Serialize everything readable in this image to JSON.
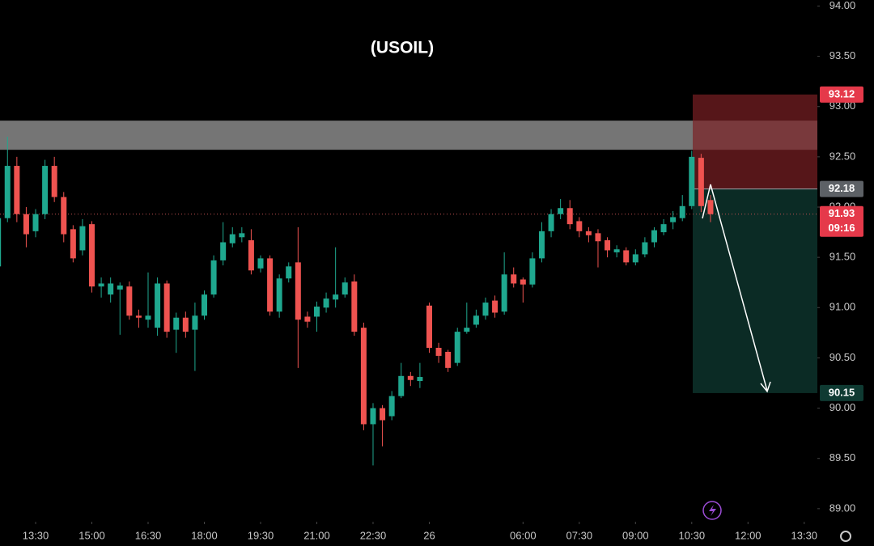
{
  "chart_data": {
    "type": "candlestick",
    "title": "(USOIL)",
    "open": [
      91.41,
      91.89,
      92.41,
      91.93,
      91.76,
      91.93,
      92.41,
      92.1,
      91.78,
      91.57,
      91.83,
      91.21,
      91.13,
      91.18,
      91.21,
      90.92,
      90.88,
      90.8,
      91.24,
      90.78,
      90.9,
      90.78,
      90.92,
      91.13,
      91.47,
      91.64,
      91.7,
      91.67,
      91.39,
      91.49,
      90.96,
      91.29,
      91.45,
      90.91,
      90.91,
      91.0,
      91.08,
      91.13,
      91.26,
      90.8,
      89.84,
      90.0,
      89.92,
      90.12,
      90.32,
      90.27,
      91.02,
      90.6,
      90.56,
      90.45,
      90.76,
      90.83,
      90.92,
      91.07,
      90.96,
      91.33,
      91.28,
      91.23,
      91.49,
      91.76,
      91.93,
      91.99,
      91.86,
      91.76,
      91.74,
      91.67,
      91.55,
      91.57,
      91.45,
      91.53,
      91.65,
      91.75,
      91.85,
      91.89,
      92.01,
      92.49,
      92.07
    ],
    "high": [
      91.95,
      92.7,
      92.5,
      92.0,
      91.98,
      92.47,
      92.5,
      92.15,
      91.82,
      91.88,
      91.86,
      91.3,
      91.3,
      91.25,
      91.26,
      90.98,
      91.35,
      91.3,
      91.27,
      90.95,
      90.96,
      91.05,
      91.17,
      91.52,
      91.85,
      91.8,
      91.8,
      91.78,
      91.52,
      91.52,
      91.33,
      91.45,
      91.8,
      90.96,
      91.06,
      91.15,
      91.6,
      91.3,
      91.33,
      90.85,
      90.05,
      90.03,
      90.17,
      90.45,
      90.36,
      90.45,
      91.05,
      90.65,
      90.58,
      90.8,
      91.05,
      90.98,
      91.1,
      91.12,
      91.55,
      91.4,
      91.3,
      91.55,
      91.85,
      91.98,
      92.08,
      92.07,
      91.9,
      91.8,
      91.78,
      91.7,
      91.62,
      91.6,
      91.58,
      91.7,
      91.8,
      91.88,
      91.96,
      92.12,
      92.56,
      92.53,
      92.12
    ],
    "low": [
      91.3,
      91.85,
      91.85,
      91.6,
      91.7,
      91.88,
      92.05,
      91.65,
      91.45,
      91.52,
      91.15,
      91.1,
      91.05,
      90.73,
      90.88,
      90.8,
      90.8,
      90.72,
      90.7,
      90.55,
      90.7,
      90.37,
      90.88,
      91.1,
      91.42,
      91.6,
      91.65,
      91.33,
      91.35,
      90.92,
      90.9,
      91.25,
      90.4,
      90.8,
      90.76,
      90.95,
      91.0,
      91.1,
      90.72,
      89.78,
      89.43,
      89.62,
      89.88,
      90.1,
      90.22,
      90.2,
      90.55,
      90.45,
      90.36,
      90.42,
      90.74,
      90.8,
      90.88,
      90.9,
      90.93,
      91.2,
      91.05,
      91.2,
      91.45,
      91.7,
      91.88,
      91.78,
      91.7,
      91.65,
      91.4,
      91.5,
      91.5,
      91.42,
      91.42,
      91.5,
      91.6,
      91.72,
      91.78,
      91.86,
      91.98,
      91.95,
      91.85
    ],
    "close": [
      91.89,
      92.41,
      91.93,
      91.73,
      91.93,
      92.41,
      92.1,
      91.73,
      91.49,
      91.81,
      91.21,
      91.24,
      91.24,
      91.22,
      90.92,
      90.9,
      90.92,
      91.24,
      90.76,
      90.9,
      90.76,
      90.92,
      91.13,
      91.47,
      91.65,
      91.73,
      91.74,
      91.37,
      91.49,
      90.96,
      91.29,
      91.41,
      90.88,
      90.86,
      91.01,
      91.09,
      91.13,
      91.25,
      90.76,
      89.84,
      90.0,
      89.88,
      90.12,
      90.32,
      90.28,
      90.31,
      90.6,
      90.52,
      90.4,
      90.76,
      90.8,
      90.92,
      91.05,
      90.95,
      91.33,
      91.24,
      91.23,
      91.49,
      91.76,
      91.93,
      91.99,
      91.83,
      91.76,
      91.72,
      91.66,
      91.57,
      91.58,
      91.45,
      91.53,
      91.65,
      91.77,
      91.83,
      91.9,
      92.01,
      92.5,
      92.01,
      91.93
    ],
    "up_color": "#1fa88f",
    "down_color": "#ef5350",
    "xlim": [
      0.2,
      87.4
    ],
    "xticks": [
      {
        "value": 4,
        "label": "13:30"
      },
      {
        "value": 10,
        "label": "15:00"
      },
      {
        "value": 16,
        "label": "16:30"
      },
      {
        "value": 22,
        "label": "18:00"
      },
      {
        "value": 28,
        "label": "19:30"
      },
      {
        "value": 34,
        "label": "21:00"
      },
      {
        "value": 40,
        "label": "22:30"
      },
      {
        "value": 46,
        "label": "26"
      },
      {
        "value": 56,
        "label": "06:00"
      },
      {
        "value": 62,
        "label": "07:30"
      },
      {
        "value": 68,
        "label": "09:00"
      },
      {
        "value": 74,
        "label": "10:30"
      },
      {
        "value": 80,
        "label": "12:00"
      },
      {
        "value": 86,
        "label": "13:30"
      }
    ],
    "ylim": [
      88.87,
      94.06
    ],
    "yticks": [
      {
        "value": 89,
        "label": "89.00"
      },
      {
        "value": 89.5,
        "label": "89.50"
      },
      {
        "value": 90,
        "label": "90.00"
      },
      {
        "value": 90.5,
        "label": "90.50"
      },
      {
        "value": 91,
        "label": "91.00"
      },
      {
        "value": 91.5,
        "label": "91.50"
      },
      {
        "value": 92,
        "label": "92.00"
      },
      {
        "value": 92.5,
        "label": "92.50"
      },
      {
        "value": 93,
        "label": "93.00"
      },
      {
        "value": 93.5,
        "label": "93.50"
      },
      {
        "value": 94,
        "label": "94.00"
      }
    ],
    "resistance_zone": [
      92.57,
      92.86
    ],
    "stop_loss": 93.12,
    "entry": 92.18,
    "take_profit": 90.15,
    "last_price": 91.93,
    "countdown": "09:16"
  }
}
